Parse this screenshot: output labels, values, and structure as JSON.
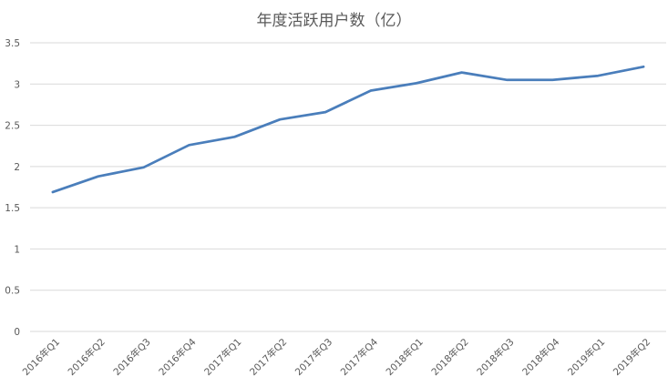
{
  "chart_data": {
    "type": "line",
    "title": "年度活跃用户数（亿）",
    "xlabel": "",
    "ylabel": "",
    "ylim": [
      0,
      3.5
    ],
    "yticks": [
      "0",
      "0.5",
      "1",
      "1.5",
      "2",
      "2.5",
      "3",
      "3.5"
    ],
    "categories": [
      "2016年Q1",
      "2016年Q2",
      "2016年Q3",
      "2016年Q4",
      "2017年Q1",
      "2017年Q2",
      "2017年Q3",
      "2017年Q4",
      "2018年Q1",
      "2018年Q2",
      "2018年Q3",
      "2018年Q4",
      "2019年Q1",
      "2019年Q2"
    ],
    "series": [
      {
        "values": [
          1.69,
          1.88,
          1.99,
          2.26,
          2.36,
          2.57,
          2.66,
          2.92,
          3.01,
          3.14,
          3.05,
          3.05,
          3.1,
          3.21
        ]
      }
    ],
    "grid": true,
    "colors": {
      "line": "#4a7ebb",
      "grid": "#d9d9d9",
      "text": "#595959"
    }
  }
}
